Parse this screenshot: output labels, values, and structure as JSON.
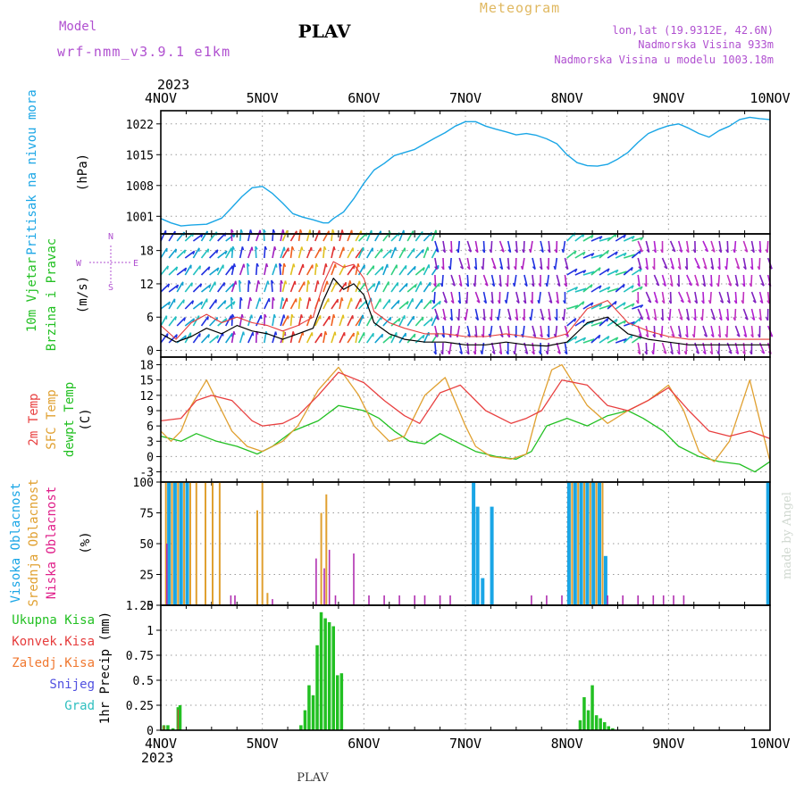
{
  "header": {
    "model_label": "Model",
    "model_name": "wrf-nmm_v3.9.1 e1km",
    "station": "PLAV",
    "product": "Meteogram",
    "lonlat": "lon,lat (19.9312E, 42.6N)",
    "elevation": "Nadmorska Visina 933m",
    "model_elevation": "Nadmorska Visina u modelu 1003.18m",
    "year": "2023",
    "footer_station": "PLAV",
    "credit": "made by Angel"
  },
  "colors": {
    "pressure": "#1aa6e6",
    "wind_speed": "#000000",
    "wind_gust": "#e63c3c",
    "t2m": "#e84040",
    "tsfc": "#e0a030",
    "dewpt": "#22c022",
    "cloud_high": "#1aa6e6",
    "cloud_mid": "#e0a030",
    "cloud_low": "#b030b0",
    "precip_total": "#22c022",
    "precip_conv": "#e63c3c",
    "precip_snow": "#5050e0",
    "grid": "#9a9a9a"
  },
  "chart_data": [
    {
      "type": "line",
      "panel": "pressure",
      "ylabel_side": "Pritisak na nivou mora",
      "ylabel": "(hPa)",
      "x_ticks": [
        "4NOV",
        "5NOV",
        "6NOV",
        "7NOV",
        "8NOV",
        "9NOV",
        "10NOV"
      ],
      "ylim": [
        997,
        1025
      ],
      "y_ticks": [
        1001,
        1008,
        1015,
        1022
      ],
      "grid": true,
      "series": [
        {
          "color_key": "pressure",
          "x": [
            0,
            0.1,
            0.2,
            0.3,
            0.45,
            0.6,
            0.7,
            0.8,
            0.9,
            1.0,
            1.1,
            1.2,
            1.3,
            1.4,
            1.5,
            1.6,
            1.65,
            1.7,
            1.8,
            1.9,
            2.0,
            2.1,
            2.2,
            2.3,
            2.4,
            2.5,
            2.6,
            2.7,
            2.8,
            2.9,
            3.0,
            3.1,
            3.2,
            3.3,
            3.4,
            3.5,
            3.6,
            3.7,
            3.8,
            3.9,
            4.0,
            4.1,
            4.2,
            4.3,
            4.4,
            4.5,
            4.6,
            4.7,
            4.8,
            4.9,
            5.0,
            5.1,
            5.2,
            5.3,
            5.4,
            5.5,
            5.6,
            5.7,
            5.8,
            5.9,
            6.0
          ],
          "y": [
            1000.5,
            999.5,
            998.8,
            999,
            999.2,
            1000.6,
            1003,
            1005.5,
            1007.5,
            1007.8,
            1006.2,
            1004,
            1001.6,
            1000.8,
            1000.2,
            999.5,
            999.5,
            1000.5,
            1002,
            1005,
            1008.5,
            1011.5,
            1013,
            1014.8,
            1015.5,
            1016.2,
            1017.5,
            1018.8,
            1020,
            1021.5,
            1022.5,
            1022.5,
            1021.5,
            1020.8,
            1020.2,
            1019.5,
            1019.8,
            1019.4,
            1018.6,
            1017.5,
            1015,
            1013.2,
            1012.5,
            1012.4,
            1012.8,
            1014,
            1015.5,
            1017.8,
            1019.8,
            1020.8,
            1021.6,
            1022,
            1021,
            1019.8,
            1019,
            1020.5,
            1021.5,
            1023,
            1023.5,
            1023.2,
            1023
          ]
        }
      ]
    },
    {
      "type": "line",
      "panel": "wind",
      "ylabel_side1": "10m Vjetar",
      "ylabel_side2": "Brzina i Pravac",
      "ylabel": "(m/s)",
      "compass": [
        "N",
        "E",
        "W",
        "S"
      ],
      "ylim": [
        -1.2,
        21
      ],
      "y_ticks": [
        0,
        6,
        12,
        18
      ],
      "grid": true,
      "series": [
        {
          "color_key": "wind_speed",
          "x": [
            0,
            0.15,
            0.3,
            0.45,
            0.6,
            0.75,
            0.9,
            1.05,
            1.2,
            1.35,
            1.5,
            1.6,
            1.7,
            1.8,
            1.9,
            2.0,
            2.1,
            2.25,
            2.4,
            2.6,
            2.8,
            3.0,
            3.2,
            3.4,
            3.6,
            3.8,
            4.0,
            4.2,
            4.4,
            4.6,
            4.8,
            5.0,
            5.2,
            5.4,
            5.6,
            5.8,
            6.0
          ],
          "y": [
            3,
            1.5,
            2.5,
            4,
            3,
            4.5,
            3.5,
            3,
            2,
            3,
            4,
            9,
            13,
            11,
            12,
            10,
            5,
            3,
            2,
            1.5,
            1.5,
            1,
            1,
            1.5,
            1,
            0.8,
            1.5,
            5,
            6,
            3,
            2,
            1.5,
            1,
            1,
            1,
            1,
            1
          ]
        },
        {
          "color_key": "wind_gust",
          "x": [
            0,
            0.15,
            0.3,
            0.45,
            0.6,
            0.75,
            0.9,
            1.05,
            1.2,
            1.35,
            1.5,
            1.6,
            1.7,
            1.8,
            1.9,
            2.0,
            2.1,
            2.25,
            2.4,
            2.6,
            2.8,
            3.0,
            3.2,
            3.4,
            3.6,
            3.8,
            4.0,
            4.2,
            4.4,
            4.6,
            4.8,
            5.0,
            5.2,
            5.4,
            5.6,
            5.8,
            6.0
          ],
          "y": [
            4.5,
            2,
            5,
            6.5,
            5,
            6,
            5,
            4.5,
            3.5,
            4.5,
            6,
            12,
            16,
            15,
            15.5,
            13,
            7,
            5,
            4,
            3,
            3,
            2.5,
            2.5,
            3,
            2.5,
            2,
            3,
            7.5,
            9,
            5,
            3.5,
            2.5,
            2,
            2,
            2,
            2,
            2
          ]
        }
      ]
    },
    {
      "type": "line",
      "panel": "temperature",
      "ylabel_t2m": "2m Temp",
      "ylabel_tsfc": "SFC Temp",
      "ylabel_dew": "dewpt Temp",
      "ylabel": "(C)",
      "ylim": [
        -5,
        19.5
      ],
      "y_ticks": [
        -3,
        0,
        3,
        6,
        9,
        12,
        15,
        18
      ],
      "grid": true,
      "series": [
        {
          "color_key": "t2m",
          "x": [
            0,
            0.2,
            0.35,
            0.5,
            0.7,
            0.9,
            1.0,
            1.2,
            1.35,
            1.55,
            1.75,
            2.0,
            2.2,
            2.4,
            2.55,
            2.75,
            2.95,
            3.2,
            3.45,
            3.6,
            3.75,
            3.95,
            4.2,
            4.4,
            4.6,
            4.8,
            5.0,
            5.2,
            5.4,
            5.6,
            5.8,
            6.0
          ],
          "y": [
            7,
            7.5,
            11,
            12,
            11,
            7,
            6,
            6.5,
            8,
            12,
            16.5,
            14.5,
            11,
            8,
            6.5,
            12.5,
            14,
            9,
            6.5,
            7.5,
            9,
            15,
            14,
            10,
            9,
            11,
            13.5,
            9,
            5,
            4,
            5,
            3.5
          ]
        },
        {
          "color_key": "tsfc",
          "x": [
            0,
            0.1,
            0.2,
            0.3,
            0.45,
            0.55,
            0.7,
            0.85,
            1.0,
            1.2,
            1.35,
            1.55,
            1.75,
            1.95,
            2.1,
            2.25,
            2.4,
            2.6,
            2.8,
            3.0,
            3.1,
            3.25,
            3.45,
            3.6,
            3.7,
            3.85,
            3.95,
            4.2,
            4.4,
            4.6,
            4.8,
            5.0,
            5.15,
            5.3,
            5.45,
            5.6,
            5.8,
            6.0
          ],
          "y": [
            5,
            3,
            5,
            10,
            15,
            11,
            5,
            2,
            1,
            3,
            6,
            13,
            17.5,
            12,
            6,
            3,
            4,
            12,
            15.5,
            6,
            2,
            0,
            -0.5,
            0.5,
            8,
            17,
            18,
            10,
            6.5,
            9,
            11,
            14,
            9,
            1,
            -1,
            3,
            15,
            -1
          ]
        },
        {
          "color_key": "dewpt",
          "x": [
            0,
            0.2,
            0.35,
            0.55,
            0.75,
            0.95,
            1.1,
            1.3,
            1.55,
            1.75,
            2.0,
            2.15,
            2.3,
            2.45,
            2.6,
            2.75,
            2.9,
            3.1,
            3.3,
            3.5,
            3.65,
            3.8,
            4.0,
            4.2,
            4.4,
            4.6,
            4.75,
            4.95,
            5.1,
            5.3,
            5.5,
            5.7,
            5.85,
            6.0
          ],
          "y": [
            4,
            3,
            4.5,
            3,
            2,
            0.5,
            2,
            5,
            7,
            10,
            9,
            7.5,
            5,
            3,
            2.5,
            4.5,
            3,
            1,
            0,
            -0.5,
            1,
            6,
            7.5,
            6,
            8,
            9,
            7.5,
            5,
            2,
            0,
            -1,
            -1.5,
            -3,
            -1
          ]
        }
      ]
    },
    {
      "type": "bar",
      "panel": "clouds",
      "ylabel_high": "Visoka Oblacnost",
      "ylabel_mid": "Srednja Oblacnost",
      "ylabel_low": "Niska Oblacnost",
      "ylabel": "(%)",
      "ylim": [
        0,
        100
      ],
      "y_ticks": [
        0,
        25,
        50,
        75,
        100
      ],
      "grid": true,
      "series": [
        {
          "name": "Visoka Oblacnost",
          "color_key": "cloud_high",
          "x": [
            0.08,
            0.14,
            0.2,
            0.26,
            3.08,
            3.12,
            3.17,
            3.26,
            4.02,
            4.08,
            4.14,
            4.2,
            4.26,
            4.32,
            4.38,
            5.98
          ],
          "y": [
            100,
            100,
            100,
            100,
            100,
            80,
            22,
            80,
            100,
            100,
            100,
            100,
            100,
            100,
            40,
            100
          ]
        },
        {
          "name": "Srednja Oblacnost",
          "color_key": "cloud_mid",
          "x": [
            0.05,
            0.11,
            0.17,
            0.23,
            0.29,
            0.35,
            0.44,
            0.51,
            0.58,
            0.95,
            1.0,
            1.05,
            1.58,
            1.63
          ],
          "y": [
            100,
            100,
            100,
            100,
            100,
            100,
            100,
            100,
            100,
            77,
            100,
            10,
            75,
            90
          ],
          "x2": [
            4.05,
            4.11,
            4.17,
            4.23,
            4.29,
            4.35
          ],
          "y2": [
            100,
            100,
            100,
            100,
            100,
            100
          ]
        },
        {
          "name": "Niska Oblacnost",
          "color_key": "cloud_low",
          "x": [
            0.06,
            0.69,
            0.73,
            1.1,
            1.53,
            1.61,
            1.66,
            1.72,
            1.9,
            2.05,
            2.2,
            2.35,
            2.5,
            2.6,
            2.75,
            2.85,
            3.65,
            3.8,
            3.95,
            4.4,
            4.55,
            4.7,
            4.85,
            4.95,
            5.05,
            5.15
          ],
          "y": [
            50,
            8,
            8,
            5,
            38,
            30,
            45,
            8,
            42,
            8,
            8,
            8,
            8,
            8,
            8,
            8,
            8,
            8,
            8,
            8,
            8,
            8,
            8,
            8,
            8,
            8
          ]
        }
      ]
    },
    {
      "type": "bar",
      "panel": "precip",
      "legend": [
        "Ukupna Kisa",
        "Konvek.Kisa",
        "Zaledj.Kisa",
        "Snijeg",
        "Grad"
      ],
      "ylabel": "1hr Precip (mm)",
      "ylim": [
        0,
        1.25
      ],
      "y_ticks": [
        0,
        0.25,
        0.5,
        0.75,
        1,
        1.25
      ],
      "grid": true,
      "series": [
        {
          "name": "Ukupna Kisa",
          "color_key": "precip_total",
          "x": [
            0.03,
            0.07,
            0.12,
            0.17,
            0.19,
            1.38,
            1.42,
            1.46,
            1.5,
            1.54,
            1.58,
            1.62,
            1.66,
            1.7,
            1.74,
            1.78,
            4.13,
            4.17,
            4.21,
            4.25,
            4.29,
            4.33,
            4.37,
            4.41,
            4.45
          ],
          "y": [
            0.05,
            0.05,
            0.02,
            0.23,
            0.25,
            0.05,
            0.2,
            0.45,
            0.35,
            0.85,
            1.18,
            1.12,
            1.08,
            1.04,
            0.55,
            0.57,
            0.1,
            0.33,
            0.2,
            0.45,
            0.15,
            0.12,
            0.08,
            0.04,
            0.02
          ]
        }
      ]
    }
  ]
}
